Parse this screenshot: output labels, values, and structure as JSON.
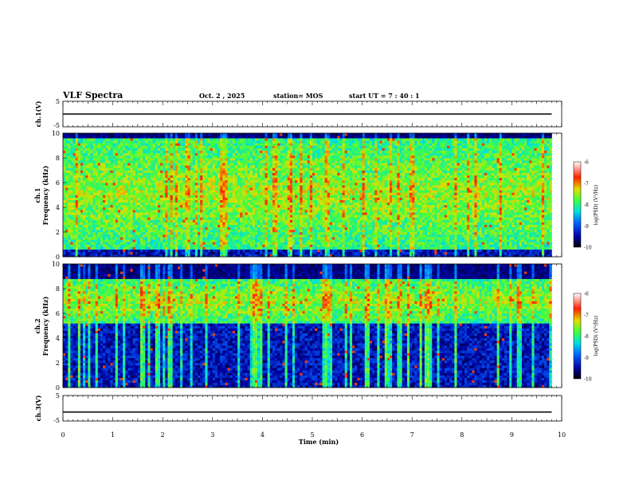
{
  "header": {
    "title": "VLF Spectra",
    "date": "Oct. 2 , 2025",
    "station": "station= MOS",
    "start": "start UT = 7 : 40 : 1"
  },
  "chart_data": [
    {
      "type": "line",
      "panel": "ch1-voltage",
      "ylabel": "ch.1(V)",
      "ylim": [
        -5,
        5
      ],
      "yticks": [
        "5",
        "-5"
      ],
      "xlim": [
        0,
        10
      ],
      "series": [
        {
          "x": [
            0,
            9.8
          ],
          "y": [
            0,
            0
          ]
        }
      ]
    },
    {
      "type": "heatmap",
      "panel": "ch1-spectrogram",
      "ylabel": "ch.1 Frequency (kHz)",
      "ylim": [
        0,
        10
      ],
      "yticks": [
        "0",
        "2",
        "4",
        "6",
        "8",
        "10"
      ],
      "xlim": [
        0,
        10
      ],
      "data_xmax": 9.8,
      "band_high_khz": [
        0.7,
        9.6
      ],
      "colorbar": {
        "label": "log(PSD) (V²/Hz)",
        "range": [
          -10,
          -6
        ],
        "ticks": [
          "-6",
          "-7",
          "-8",
          "-9",
          "-10"
        ]
      }
    },
    {
      "type": "heatmap",
      "panel": "ch2-spectrogram",
      "ylabel": "ch.2 Frequency (kHz)",
      "ylim": [
        0,
        10
      ],
      "yticks": [
        "0",
        "2",
        "4",
        "6",
        "8",
        "10"
      ],
      "xlim": [
        0,
        10
      ],
      "data_xmax": 9.8,
      "band_high_khz": [
        5.2,
        8.8
      ],
      "colorbar": {
        "label": "log(PSD) (V²/Hz)",
        "range": [
          -10,
          -6
        ],
        "ticks": [
          "-6",
          "-7",
          "-8",
          "-9",
          "-10"
        ]
      }
    },
    {
      "type": "line",
      "panel": "ch3-voltage",
      "ylabel": "ch.3(V)",
      "ylim": [
        -5,
        5
      ],
      "yticks": [
        "5",
        "-5"
      ],
      "xlim": [
        0,
        10
      ],
      "xlabel": "Time (min)",
      "xticks": [
        "0",
        "1",
        "2",
        "3",
        "4",
        "5",
        "6",
        "7",
        "8",
        "9",
        "10"
      ],
      "series": [
        {
          "x": [
            0,
            9.8
          ],
          "y": [
            -1.5,
            -1.5
          ]
        }
      ]
    }
  ]
}
